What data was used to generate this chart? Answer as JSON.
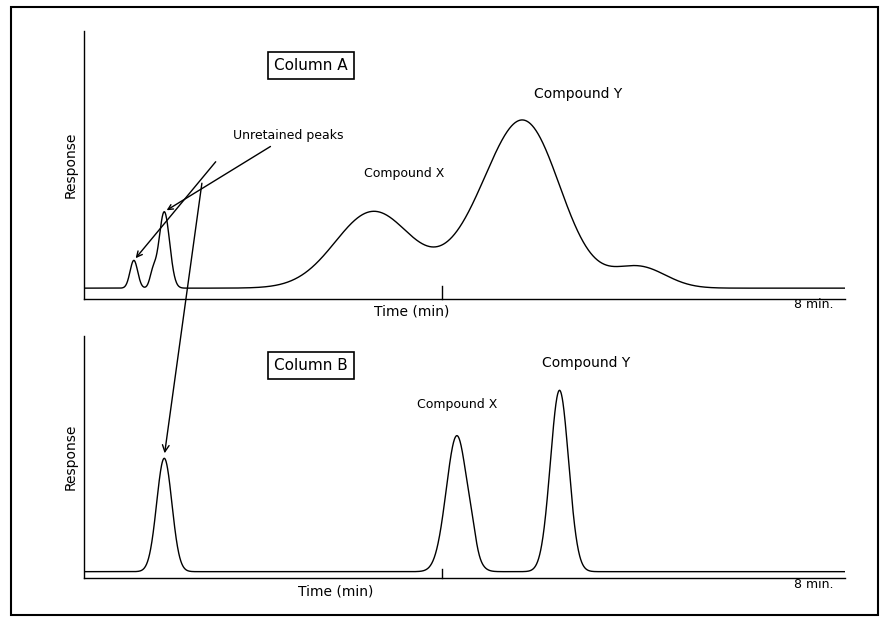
{
  "background_color": "#ffffff",
  "title_A": "Column A",
  "title_B": "Column B",
  "xlabel": "Time (min)",
  "ylabel": "Response",
  "time_label": "8 min.",
  "label_unretained": "Unretained peaks",
  "label_compound_x_A": "Compound X",
  "label_compound_y_A": "Compound Y",
  "label_compound_x_B": "Compound X",
  "label_compound_y_B": "Compound Y",
  "figsize": [
    8.89,
    6.22
  ],
  "dpi": 100
}
